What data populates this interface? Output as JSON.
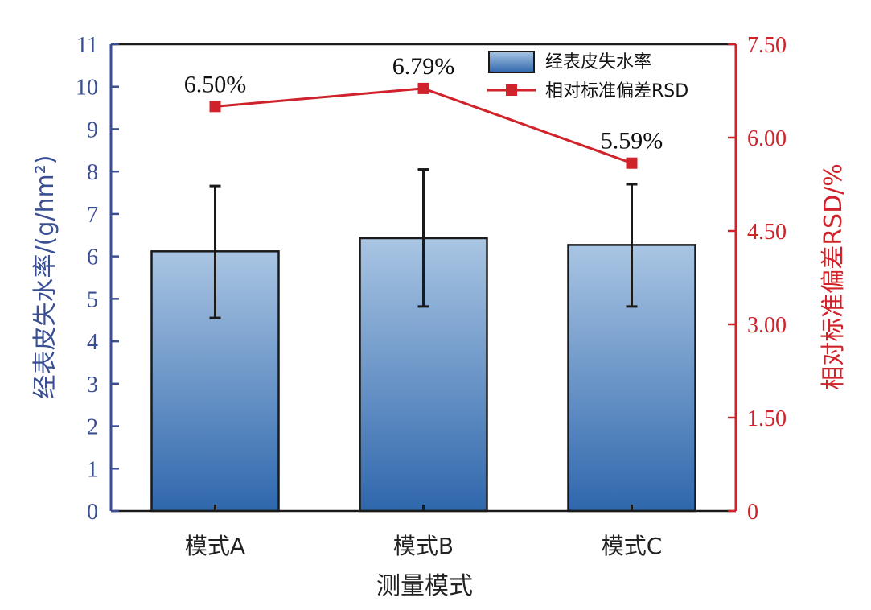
{
  "chart_data": {
    "type": "bar",
    "categories": [
      "模式A",
      "模式B",
      "模式C"
    ],
    "xlabel": "测量模式",
    "ylabel": "经表皮失水率/(g/hm²)",
    "y2label": "相对标准偏差RSD/%",
    "ylim": [
      0,
      11
    ],
    "y2lim": [
      0,
      7.5
    ],
    "yticks": [
      "0",
      "1",
      "2",
      "3",
      "4",
      "5",
      "6",
      "7",
      "8",
      "9",
      "10",
      "11"
    ],
    "y2ticks": [
      "0",
      "1.50",
      "3.00",
      "4.50",
      "6.00",
      "7.50"
    ],
    "grid": false,
    "legend_position": "top-right",
    "series": [
      {
        "name": "经表皮失水率",
        "type": "bar",
        "axis": "left",
        "values": [
          6.12,
          6.43,
          6.27
        ],
        "error_low": [
          4.55,
          4.82,
          4.82
        ],
        "error_high": [
          7.66,
          8.05,
          7.7
        ]
      },
      {
        "name": "相对标准偏差RSD",
        "type": "line",
        "axis": "right",
        "values": [
          6.5,
          6.79,
          5.59
        ],
        "labels": [
          "6.50%",
          "6.79%",
          "5.59%"
        ]
      }
    ],
    "colors": {
      "bar_top": "#a9c5e3",
      "bar_bottom": "#2f67ac",
      "line": "#d0222a",
      "left_axis": "#3a4f93",
      "right_axis": "#d0222a",
      "error_bar": "#1a1a1a"
    }
  }
}
